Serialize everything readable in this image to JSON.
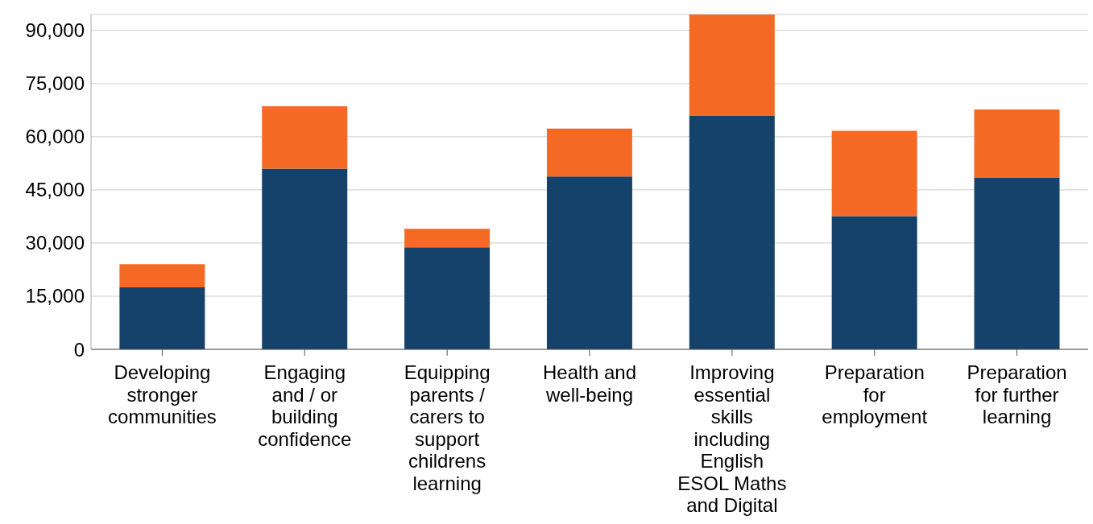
{
  "chart_data": {
    "type": "bar",
    "stacked": true,
    "categories": [
      "Developing stronger communities",
      "Engaging and / or building confidence",
      "Equipping parents / carers to support childrens learning",
      "Health and well-being",
      "Improving essential skills including English ESOL Maths and Digital",
      "Preparation for employment",
      "Preparation for further learning"
    ],
    "series": [
      {
        "color": "#14426b",
        "values": [
          17500,
          51000,
          28800,
          48800,
          65900,
          37600,
          48400
        ]
      },
      {
        "color": "#f46a25",
        "values": [
          6500,
          17600,
          5200,
          13500,
          28600,
          24100,
          19300
        ]
      }
    ],
    "ylim": [
      0,
      94500
    ],
    "yticks": [
      0,
      {
        "value": 15000,
        "label": "15,000"
      },
      {
        "value": 30000,
        "label": "30,000"
      },
      {
        "value": 45000,
        "label": "45,000"
      },
      {
        "value": 60000,
        "label": "60,000"
      },
      {
        "value": 75000,
        "label": "75,000"
      },
      {
        "value": 90000,
        "label": "90,000"
      }
    ],
    "grid": "y",
    "legend": false
  }
}
